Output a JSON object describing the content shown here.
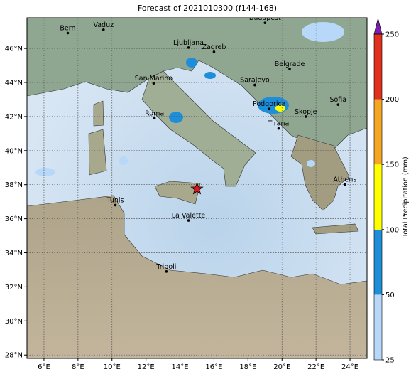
{
  "chart_data": {
    "type": "map",
    "title": "Forecast of 2021010300 (f144-168)",
    "xlim": [
      5,
      25
    ],
    "ylim": [
      27.8,
      47.8
    ],
    "grid": true,
    "xticks": [
      {
        "value": 6,
        "label": "6°E"
      },
      {
        "value": 8,
        "label": "8°E"
      },
      {
        "value": 10,
        "label": "10°E"
      },
      {
        "value": 12,
        "label": "12°E"
      },
      {
        "value": 14,
        "label": "14°E"
      },
      {
        "value": 16,
        "label": "16°E"
      },
      {
        "value": 18,
        "label": "18°E"
      },
      {
        "value": 20,
        "label": "20°E"
      },
      {
        "value": 22,
        "label": "22°E"
      },
      {
        "value": 24,
        "label": "24°E"
      }
    ],
    "yticks": [
      {
        "value": 28,
        "label": "28°N"
      },
      {
        "value": 30,
        "label": "30°N"
      },
      {
        "value": 32,
        "label": "32°N"
      },
      {
        "value": 34,
        "label": "34°N"
      },
      {
        "value": 36,
        "label": "36°N"
      },
      {
        "value": 38,
        "label": "38°N"
      },
      {
        "value": 40,
        "label": "40°N"
      },
      {
        "value": 42,
        "label": "42°N"
      },
      {
        "value": 44,
        "label": "44°N"
      },
      {
        "value": 46,
        "label": "46°N"
      }
    ],
    "cities": [
      {
        "name": "Bern",
        "lon": 7.4,
        "lat": 46.9
      },
      {
        "name": "Vaduz",
        "lon": 9.5,
        "lat": 47.1
      },
      {
        "name": "Budapest",
        "lon": 19.0,
        "lat": 47.5
      },
      {
        "name": "Ljubljana",
        "lon": 14.5,
        "lat": 46.05
      },
      {
        "name": "Zagreb",
        "lon": 16.0,
        "lat": 45.8
      },
      {
        "name": "San Marino",
        "lon": 12.45,
        "lat": 43.95
      },
      {
        "name": "Sarajevo",
        "lon": 18.4,
        "lat": 43.85
      },
      {
        "name": "Belgrade",
        "lon": 20.45,
        "lat": 44.8
      },
      {
        "name": "Roma",
        "lon": 12.5,
        "lat": 41.9
      },
      {
        "name": "Podgorica",
        "lon": 19.25,
        "lat": 42.45
      },
      {
        "name": "Sofia",
        "lon": 23.3,
        "lat": 42.7
      },
      {
        "name": "Skopje",
        "lon": 21.4,
        "lat": 42.0
      },
      {
        "name": "Tirana",
        "lon": 19.8,
        "lat": 41.3
      },
      {
        "name": "Athens",
        "lon": 23.7,
        "lat": 38.0
      },
      {
        "name": "Tunis",
        "lon": 10.2,
        "lat": 36.8
      },
      {
        "name": "La Valette",
        "lon": 14.5,
        "lat": 35.9
      },
      {
        "name": "Tripoli",
        "lon": 13.2,
        "lat": 32.9
      }
    ],
    "marker": {
      "lon": 15.0,
      "lat": 37.75,
      "color": "#e8101a"
    },
    "colorbar": {
      "label": "Total Precipitation (mm)",
      "levels": [
        25,
        50,
        100,
        150,
        200,
        250
      ],
      "colors": [
        "#b8d8fa",
        "#1e8ed8",
        "#ffff00",
        "#f5a623",
        "#e0301e"
      ],
      "extend_color": "#7a1fb0"
    }
  }
}
